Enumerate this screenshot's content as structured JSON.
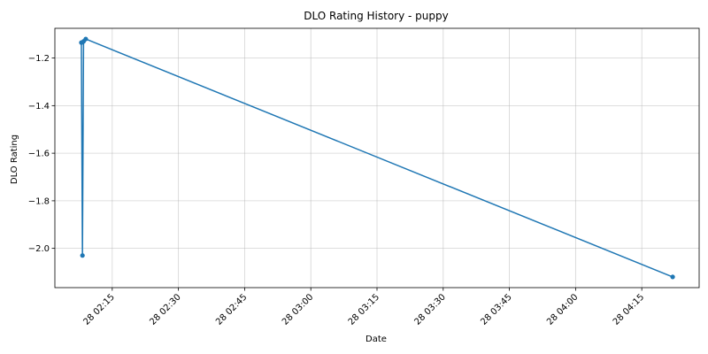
{
  "chart_data": {
    "type": "line",
    "title": "DLO Rating History - puppy",
    "xlabel": "Date",
    "ylabel": "DLO Rating",
    "x_type": "time",
    "xlim": [
      "02:02:00",
      "04:28:00"
    ],
    "ylim": [
      -2.165,
      -1.075
    ],
    "x_ticks": [
      {
        "time": "02:15",
        "label": "28 02:15"
      },
      {
        "time": "02:30",
        "label": "28 02:30"
      },
      {
        "time": "02:45",
        "label": "28 02:45"
      },
      {
        "time": "03:00",
        "label": "28 03:00"
      },
      {
        "time": "03:15",
        "label": "28 03:15"
      },
      {
        "time": "03:30",
        "label": "28 03:30"
      },
      {
        "time": "03:45",
        "label": "28 03:45"
      },
      {
        "time": "04:00",
        "label": "28 04:00"
      },
      {
        "time": "04:15",
        "label": "28 04:15"
      }
    ],
    "y_ticks": [
      {
        "value": -2.0,
        "label": "−2.0"
      },
      {
        "value": -1.8,
        "label": "−1.8"
      },
      {
        "value": -1.6,
        "label": "−1.6"
      },
      {
        "value": -1.4,
        "label": "−1.4"
      },
      {
        "value": -1.2,
        "label": "−1.2"
      }
    ],
    "grid": true,
    "series": [
      {
        "color": "#1f77b4",
        "marker": "circle",
        "points": [
          {
            "x": "02:08:00",
            "y": -1.135
          },
          {
            "x": "02:08:15",
            "y": -2.03
          },
          {
            "x": "02:08:30",
            "y": -1.13
          },
          {
            "x": "02:09:00",
            "y": -1.12
          },
          {
            "x": "04:22:00",
            "y": -2.12
          }
        ]
      }
    ]
  }
}
